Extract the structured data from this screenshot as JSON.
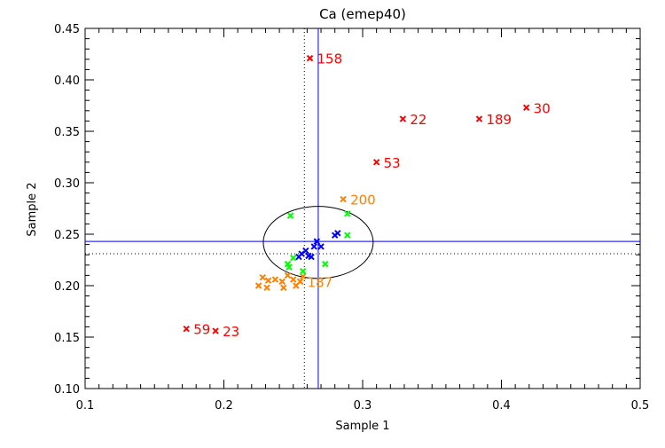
{
  "chart_data": {
    "type": "scatter",
    "title": "Ca (emep40)",
    "xlabel": "Sample 1",
    "ylabel": "Sample 2",
    "xlim": [
      0.1,
      0.5
    ],
    "ylim": [
      0.1,
      0.45
    ],
    "xticks": [
      "0.1",
      "0.2",
      "0.3",
      "0.4",
      "0.5"
    ],
    "yticks": [
      "0.10",
      "0.15",
      "0.20",
      "0.25",
      "0.30",
      "0.35",
      "0.40",
      "0.45"
    ],
    "grid": false,
    "series": [
      {
        "name": "red",
        "color": "#ff0000",
        "points": [
          {
            "x": 0.262,
            "y": 0.421,
            "label": "158"
          },
          {
            "x": 0.329,
            "y": 0.362,
            "label": "22"
          },
          {
            "x": 0.384,
            "y": 0.362,
            "label": "189"
          },
          {
            "x": 0.418,
            "y": 0.373,
            "label": "30"
          },
          {
            "x": 0.31,
            "y": 0.32,
            "label": "53"
          },
          {
            "x": 0.173,
            "y": 0.158,
            "label": "59"
          },
          {
            "x": 0.194,
            "y": 0.156,
            "label": "23"
          }
        ]
      },
      {
        "name": "orange",
        "color": "#ff8000",
        "points": [
          {
            "x": 0.286,
            "y": 0.284,
            "label": "200"
          },
          {
            "x": 0.228,
            "y": 0.208
          },
          {
            "x": 0.232,
            "y": 0.205
          },
          {
            "x": 0.225,
            "y": 0.2
          },
          {
            "x": 0.231,
            "y": 0.198
          },
          {
            "x": 0.237,
            "y": 0.206
          },
          {
            "x": 0.242,
            "y": 0.204
          },
          {
            "x": 0.246,
            "y": 0.21
          },
          {
            "x": 0.25,
            "y": 0.206
          },
          {
            "x": 0.255,
            "y": 0.204,
            "label": "187"
          },
          {
            "x": 0.257,
            "y": 0.209
          },
          {
            "x": 0.252,
            "y": 0.2
          },
          {
            "x": 0.243,
            "y": 0.198
          }
        ]
      },
      {
        "name": "green",
        "color": "#00ff00",
        "points": [
          {
            "x": 0.248,
            "y": 0.268
          },
          {
            "x": 0.289,
            "y": 0.27
          },
          {
            "x": 0.289,
            "y": 0.249
          },
          {
            "x": 0.273,
            "y": 0.221
          },
          {
            "x": 0.246,
            "y": 0.221
          },
          {
            "x": 0.25,
            "y": 0.227
          },
          {
            "x": 0.257,
            "y": 0.214
          },
          {
            "x": 0.247,
            "y": 0.218
          }
        ]
      },
      {
        "name": "blue",
        "color": "#0000ff",
        "points": [
          {
            "x": 0.282,
            "y": 0.251
          },
          {
            "x": 0.28,
            "y": 0.249
          },
          {
            "x": 0.267,
            "y": 0.243
          },
          {
            "x": 0.265,
            "y": 0.238
          },
          {
            "x": 0.27,
            "y": 0.238
          },
          {
            "x": 0.259,
            "y": 0.234
          },
          {
            "x": 0.256,
            "y": 0.231
          },
          {
            "x": 0.261,
            "y": 0.229
          },
          {
            "x": 0.263,
            "y": 0.228
          },
          {
            "x": 0.254,
            "y": 0.228
          }
        ]
      }
    ],
    "reference_lines": {
      "blue_vertical_x": 0.268,
      "blue_horizontal_y": 0.243,
      "dotted_vertical_x": 0.258,
      "dotted_horizontal_y": 0.231
    },
    "ellipse": {
      "cx": 0.268,
      "cy": 0.242,
      "rx": 0.0396,
      "ry": 0.035
    }
  }
}
